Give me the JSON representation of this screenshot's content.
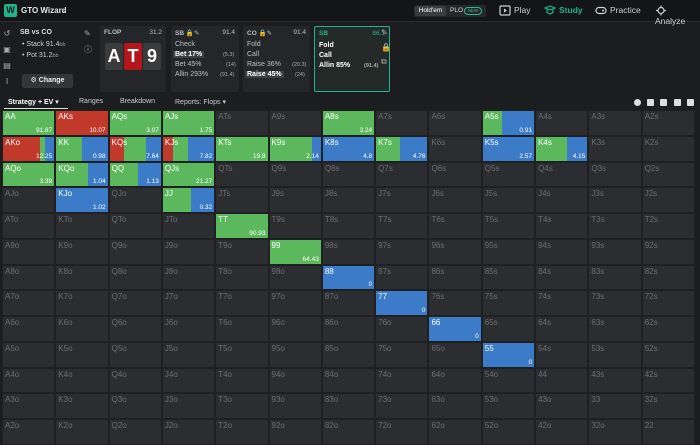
{
  "app": {
    "logo_letter": "W",
    "name": "GTO Wizard",
    "brand_chevron": "⌄",
    "game_holdem": "Hold'em",
    "game_plo": "PLO",
    "game_new": "NEW",
    "nav": [
      {
        "label": "Play",
        "icon": "play-icon"
      },
      {
        "label": "Study",
        "icon": "study-icon"
      },
      {
        "label": "Practice",
        "icon": "practice-icon"
      },
      {
        "label": "Analyze",
        "icon": "analyze-icon"
      }
    ]
  },
  "spot": {
    "title": "SB vs CO",
    "stack_label": "Stack",
    "stack_value": "91.4",
    "stack_unit": "bb",
    "pot_label": "Pot",
    "pot_value": "31.2",
    "pot_unit": "bb",
    "change_label": "Change"
  },
  "flop": {
    "title": "FLOP",
    "value": "31.2",
    "cards": [
      {
        "rank": "A",
        "color": "#3b3b3b"
      },
      {
        "rank": "T",
        "color": "#b3161c"
      },
      {
        "rank": "9",
        "color": "#3b3b3b"
      }
    ]
  },
  "panels": [
    {
      "id": "sb1",
      "head": "SB",
      "value": "91.4",
      "rows": [
        {
          "label": "Check",
          "pct": "",
          "count": ""
        },
        {
          "label": "Bet",
          "pct": "17%",
          "count": "(5.3)",
          "highlight": true
        },
        {
          "label": "Bet",
          "pct": "45%",
          "count": "(14)"
        },
        {
          "label": "Allin",
          "pct": "293%",
          "count": "(91.4)"
        }
      ]
    },
    {
      "id": "co",
      "head": "CO",
      "value": "91.4",
      "rows": [
        {
          "label": "Fold",
          "pct": "",
          "count": ""
        },
        {
          "label": "Call",
          "pct": "",
          "count": ""
        },
        {
          "label": "Raise",
          "pct": "36%",
          "count": "(20.3)"
        },
        {
          "label": "Raise",
          "pct": "45%",
          "count": "(24)",
          "highlight": true
        }
      ]
    },
    {
      "id": "sb2",
      "head": "SB",
      "value": "86.1",
      "rows": [
        {
          "label": "Fold",
          "pct": "",
          "count": ""
        },
        {
          "label": "Call",
          "pct": "",
          "count": ""
        },
        {
          "label": "Allin",
          "pct": "85%",
          "count": "(91.4)"
        }
      ]
    }
  ],
  "tabs": {
    "strategy": "Strategy + EV",
    "ranges": "Ranges",
    "breakdown": "Breakdown",
    "reports": "Reports: Flops"
  },
  "colors": {
    "fold": "#3b7bc8",
    "call": "#5cb85c",
    "raise": "#c0392b",
    "accent": "#22b38a"
  },
  "ranks": [
    "A",
    "K",
    "Q",
    "J",
    "T",
    "9",
    "8",
    "7",
    "6",
    "5",
    "4",
    "3",
    "2"
  ],
  "cells": {
    "AA": {
      "ev": "91.87",
      "segs": [
        [
          "call",
          1.0
        ]
      ]
    },
    "AKs": {
      "ev": "10.07",
      "segs": [
        [
          "raise",
          1.0
        ]
      ]
    },
    "AQs": {
      "ev": "3.07",
      "segs": [
        [
          "call",
          1.0
        ]
      ]
    },
    "AJs": {
      "ev": "1.75",
      "segs": [
        [
          "call",
          1.0
        ]
      ]
    },
    "A8s": {
      "ev": "3.24",
      "segs": [
        [
          "call",
          1.0
        ]
      ]
    },
    "A5s": {
      "ev": "0.91",
      "segs": [
        [
          "call",
          0.38
        ],
        [
          "fold",
          0.62
        ]
      ]
    },
    "AKo": {
      "ev": "12.25",
      "segs": [
        [
          "raise",
          0.72
        ],
        [
          "call",
          0.1
        ],
        [
          "fold",
          0.18
        ]
      ]
    },
    "KK": {
      "ev": "0.98",
      "segs": [
        [
          "call",
          0.5
        ],
        [
          "fold",
          0.5
        ]
      ]
    },
    "KQs": {
      "ev": "7.64",
      "segs": [
        [
          "raise",
          0.28
        ],
        [
          "call",
          0.42
        ],
        [
          "fold",
          0.3
        ]
      ]
    },
    "KJs": {
      "ev": "7.82",
      "segs": [
        [
          "raise",
          0.2
        ],
        [
          "call",
          0.28
        ],
        [
          "fold",
          0.52
        ]
      ]
    },
    "KTs": {
      "ev": "19.8",
      "segs": [
        [
          "call",
          1.0
        ]
      ]
    },
    "K9s": {
      "ev": "2.14",
      "segs": [
        [
          "call",
          0.82
        ],
        [
          "fold",
          0.18
        ]
      ]
    },
    "K8s": {
      "ev": "4.8",
      "segs": [
        [
          "fold",
          1.0
        ]
      ]
    },
    "K7s": {
      "ev": "4.76",
      "segs": [
        [
          "call",
          0.46
        ],
        [
          "fold",
          0.54
        ]
      ]
    },
    "K5s": {
      "ev": "2.57",
      "segs": [
        [
          "fold",
          1.0
        ]
      ]
    },
    "K4s": {
      "ev": "4.15",
      "segs": [
        [
          "call",
          0.6
        ],
        [
          "fold",
          0.4
        ]
      ]
    },
    "AQo": {
      "ev": "3.39",
      "segs": [
        [
          "call",
          1.0
        ]
      ]
    },
    "KQo": {
      "ev": "1.04",
      "segs": [
        [
          "call",
          0.62
        ],
        [
          "fold",
          0.38
        ]
      ]
    },
    "QQ": {
      "ev": "1.13",
      "segs": [
        [
          "call",
          0.55
        ],
        [
          "fold",
          0.45
        ]
      ]
    },
    "QJs": {
      "ev": "21.27",
      "segs": [
        [
          "call",
          1.0
        ]
      ]
    },
    "KJo": {
      "ev": "1.02",
      "segs": [
        [
          "fold",
          1.0
        ]
      ]
    },
    "JJ": {
      "ev": "0.32",
      "segs": [
        [
          "call",
          0.55
        ],
        [
          "fold",
          0.45
        ]
      ]
    },
    "TT": {
      "ev": "90.93",
      "segs": [
        [
          "call",
          1.0
        ]
      ]
    },
    "99": {
      "ev": "64.43",
      "segs": [
        [
          "call",
          1.0
        ]
      ]
    },
    "88": {
      "ev": "0",
      "segs": [
        [
          "fold",
          1.0
        ]
      ]
    },
    "77": {
      "ev": "0",
      "segs": [
        [
          "fold",
          1.0
        ]
      ]
    },
    "66": {
      "ev": "0",
      "segs": [
        [
          "fold",
          1.0
        ]
      ]
    },
    "55": {
      "ev": "0",
      "segs": [
        [
          "fold",
          1.0
        ]
      ]
    }
  }
}
